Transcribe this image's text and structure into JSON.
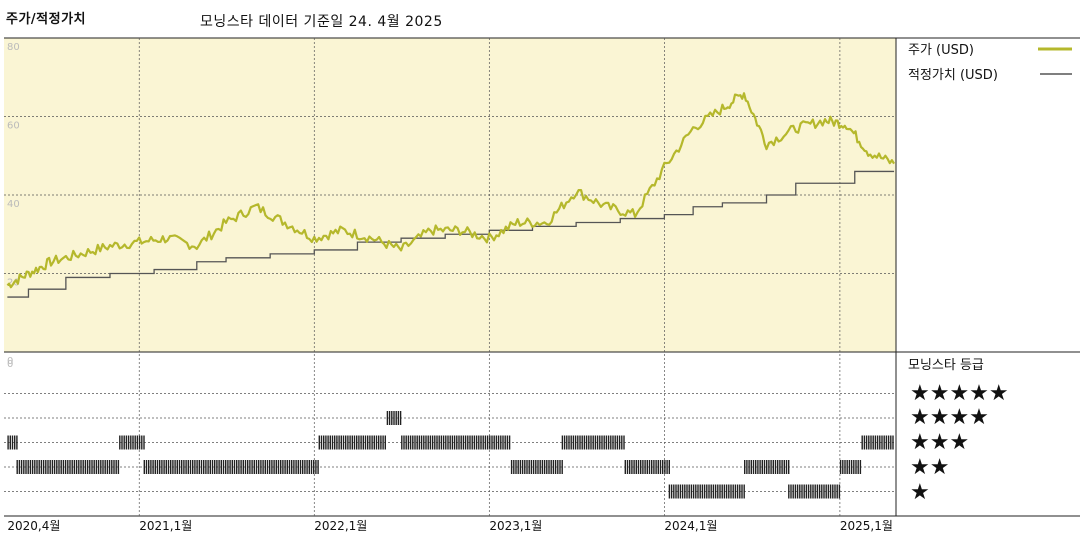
{
  "header": {
    "title": "주가/적정가치",
    "subtitle": "모닝스타 데이터 기준일 24. 4월 2025"
  },
  "colors": {
    "price": "#b5b82c",
    "fair_value": "#555555",
    "panel_bg": "#faf5d4"
  },
  "chart_data": {
    "type": "line",
    "title": "주가/적정가치",
    "ylim": [
      0,
      80
    ],
    "y_ticks": [
      "80",
      "60",
      "40",
      "20",
      "0"
    ],
    "grid": true,
    "legend_position": "right",
    "x_ticks": [
      "2020,4월",
      "2021,1월",
      "2022,1월",
      "2023,1월",
      "2024,1월",
      "2025,1월"
    ],
    "series": [
      {
        "name": "주가 (USD)",
        "x": [
          "2020-04-01",
          "2020-05-15",
          "2020-07-01",
          "2020-09-01",
          "2020-11-01",
          "2021-01-01",
          "2021-03-01",
          "2021-05-01",
          "2021-07-01",
          "2021-09-01",
          "2021-11-01",
          "2022-01-01",
          "2022-03-01",
          "2022-05-01",
          "2022-07-01",
          "2022-09-01",
          "2022-11-01",
          "2023-01-01",
          "2023-03-01",
          "2023-05-01",
          "2023-07-01",
          "2023-09-01",
          "2023-11-01",
          "2024-01-01",
          "2024-03-01",
          "2024-05-01",
          "2024-06-15",
          "2024-08-01",
          "2024-10-01",
          "2024-12-01",
          "2025-01-15",
          "2025-03-01",
          "2025-04-24"
        ],
        "values": [
          17,
          20,
          23,
          25,
          27,
          28,
          29,
          27,
          33,
          37,
          33,
          29,
          31,
          29,
          26,
          31,
          31,
          29,
          33,
          33,
          41,
          37,
          35,
          47,
          57,
          62,
          66,
          53,
          57,
          59,
          58,
          51,
          48
        ]
      },
      {
        "name": "적정가치 (USD)",
        "x": [
          "2020-04-01",
          "2020-05-15",
          "2020-08-01",
          "2020-11-01",
          "2021-02-01",
          "2021-05-01",
          "2021-07-01",
          "2021-10-01",
          "2022-01-01",
          "2022-04-01",
          "2022-07-01",
          "2022-10-01",
          "2023-01-01",
          "2023-04-01",
          "2023-07-01",
          "2023-10-01",
          "2024-01-01",
          "2024-03-01",
          "2024-05-01",
          "2024-08-01",
          "2024-10-01",
          "2024-12-01",
          "2025-02-01",
          "2025-04-24"
        ],
        "values": [
          14,
          16,
          19,
          20,
          21,
          23,
          24,
          25,
          26,
          28,
          29,
          30,
          31,
          32,
          33,
          34,
          35,
          37,
          38,
          40,
          43,
          43,
          46,
          46
        ]
      }
    ]
  },
  "rating_panel": {
    "title": "모닝스타 등급",
    "levels": [
      {
        "stars": "★★★★★",
        "value": 5
      },
      {
        "stars": "★★★★",
        "value": 4
      },
      {
        "stars": "★★★",
        "value": 3
      },
      {
        "stars": "★★",
        "value": 2
      },
      {
        "stars": "★",
        "value": 1
      }
    ],
    "history": [
      {
        "start": "2020-04-01",
        "end": "2020-04-20",
        "rating": 3
      },
      {
        "start": "2020-04-20",
        "end": "2020-11-20",
        "rating": 2
      },
      {
        "start": "2020-11-20",
        "end": "2021-01-10",
        "rating": 3
      },
      {
        "start": "2021-01-10",
        "end": "2022-01-10",
        "rating": 2
      },
      {
        "start": "2022-01-10",
        "end": "2022-06-01",
        "rating": 3
      },
      {
        "start": "2022-06-01",
        "end": "2022-07-01",
        "rating": 4
      },
      {
        "start": "2022-07-01",
        "end": "2023-02-15",
        "rating": 3
      },
      {
        "start": "2023-02-15",
        "end": "2023-06-01",
        "rating": 2
      },
      {
        "start": "2023-06-01",
        "end": "2023-10-10",
        "rating": 3
      },
      {
        "start": "2023-10-10",
        "end": "2024-01-10",
        "rating": 2
      },
      {
        "start": "2024-01-10",
        "end": "2024-06-15",
        "rating": 1
      },
      {
        "start": "2024-06-15",
        "end": "2024-09-15",
        "rating": 2
      },
      {
        "start": "2024-09-15",
        "end": "2025-01-01",
        "rating": 1
      },
      {
        "start": "2025-01-01",
        "end": "2025-02-15",
        "rating": 2
      },
      {
        "start": "2025-02-15",
        "end": "2025-04-24",
        "rating": 3
      }
    ]
  }
}
